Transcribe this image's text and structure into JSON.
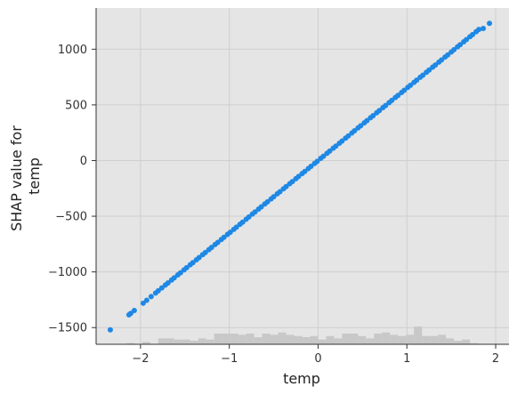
{
  "chart_data": {
    "type": "scatter",
    "title": "",
    "xlabel": "temp",
    "ylabel_lines": [
      "SHAP value for",
      "temp"
    ],
    "xlim": [
      -2.5,
      2.15
    ],
    "ylim": [
      -1650,
      1370
    ],
    "x_ticks": [
      -2,
      -1,
      0,
      1,
      2
    ],
    "x_tick_labels": [
      "−2",
      "−1",
      "0",
      "1",
      "2"
    ],
    "y_ticks": [
      -1500,
      -1000,
      -500,
      0,
      500,
      1000
    ],
    "y_tick_labels": [
      "−1500",
      "−1000",
      "−500",
      "0",
      "500",
      "1000"
    ],
    "grid": true,
    "colors": {
      "points": "#1e88e5",
      "background": "#e5e5e5",
      "grid": "#cfcfcf",
      "histogram": "#c8c8c8"
    },
    "series": [
      {
        "x": [
          -2.34,
          -2.13,
          -2.11,
          -2.07,
          -1.97,
          -1.93,
          -1.88,
          -1.83,
          -1.8,
          -1.76,
          -1.72,
          -1.69,
          -1.65,
          -1.62,
          -1.58,
          -1.55,
          -1.51,
          -1.48,
          -1.44,
          -1.41,
          -1.37,
          -1.34,
          -1.3,
          -1.27,
          -1.23,
          -1.2,
          -1.16,
          -1.13,
          -1.09,
          -1.06,
          -1.02,
          -0.99,
          -0.95,
          -0.92,
          -0.88,
          -0.85,
          -0.81,
          -0.78,
          -0.74,
          -0.71,
          -0.67,
          -0.64,
          -0.6,
          -0.57,
          -0.53,
          -0.5,
          -0.46,
          -0.43,
          -0.39,
          -0.36,
          -0.32,
          -0.29,
          -0.25,
          -0.22,
          -0.18,
          -0.15,
          -0.11,
          -0.08,
          -0.04,
          -0.01,
          0.03,
          0.06,
          0.1,
          0.13,
          0.17,
          0.2,
          0.24,
          0.27,
          0.31,
          0.34,
          0.38,
          0.41,
          0.45,
          0.48,
          0.52,
          0.55,
          0.59,
          0.62,
          0.66,
          0.69,
          0.73,
          0.76,
          0.8,
          0.83,
          0.87,
          0.9,
          0.94,
          0.97,
          1.01,
          1.04,
          1.08,
          1.11,
          1.15,
          1.18,
          1.22,
          1.25,
          1.29,
          1.32,
          1.36,
          1.39,
          1.43,
          1.46,
          1.5,
          1.53,
          1.57,
          1.6,
          1.64,
          1.67,
          1.71,
          1.74,
          1.78,
          1.81,
          1.86,
          1.93
        ],
        "y": [
          -1520,
          -1385,
          -1372,
          -1346,
          -1281,
          -1255,
          -1222,
          -1190,
          -1170,
          -1144,
          -1118,
          -1099,
          -1073,
          -1053,
          -1027,
          -1008,
          -982,
          -962,
          -936,
          -917,
          -891,
          -871,
          -845,
          -826,
          -800,
          -780,
          -754,
          -735,
          -709,
          -689,
          -663,
          -644,
          -618,
          -598,
          -572,
          -553,
          -527,
          -507,
          -481,
          -462,
          -436,
          -416,
          -390,
          -371,
          -345,
          -325,
          -299,
          -280,
          -254,
          -234,
          -208,
          -189,
          -163,
          -143,
          -117,
          -98,
          -72,
          -52,
          -26,
          -7,
          20,
          39,
          65,
          85,
          111,
          130,
          156,
          176,
          202,
          221,
          247,
          267,
          293,
          312,
          338,
          358,
          384,
          403,
          429,
          449,
          475,
          494,
          520,
          540,
          566,
          585,
          611,
          631,
          657,
          676,
          702,
          722,
          748,
          767,
          793,
          813,
          839,
          858,
          884,
          904,
          930,
          949,
          975,
          995,
          1021,
          1040,
          1066,
          1086,
          1112,
          1131,
          1157,
          1177,
          1186,
          1232
        ]
      }
    ],
    "histogram": {
      "bin_edges": [
        -2.34,
        -2.25,
        -2.16,
        -2.07,
        -1.98,
        -1.89,
        -1.8,
        -1.71,
        -1.62,
        -1.53,
        -1.44,
        -1.35,
        -1.26,
        -1.17,
        -1.08,
        -0.99,
        -0.9,
        -0.81,
        -0.72,
        -0.63,
        -0.54,
        -0.45,
        -0.36,
        -0.27,
        -0.18,
        -0.09,
        0.0,
        0.09,
        0.18,
        0.27,
        0.36,
        0.45,
        0.54,
        0.63,
        0.72,
        0.81,
        0.9,
        0.99,
        1.08,
        1.17,
        1.26,
        1.35,
        1.44,
        1.53,
        1.62,
        1.71,
        1.8
      ],
      "counts": [
        0,
        0,
        1,
        0,
        2,
        0,
        5,
        5,
        4,
        4,
        3,
        5,
        4,
        9,
        9,
        9,
        8,
        9,
        6,
        9,
        8,
        10,
        8,
        7,
        6,
        7,
        4,
        7,
        5,
        9,
        9,
        7,
        5,
        9,
        10,
        8,
        7,
        8,
        15,
        7,
        7,
        8,
        5,
        3,
        4,
        1
      ]
    }
  }
}
